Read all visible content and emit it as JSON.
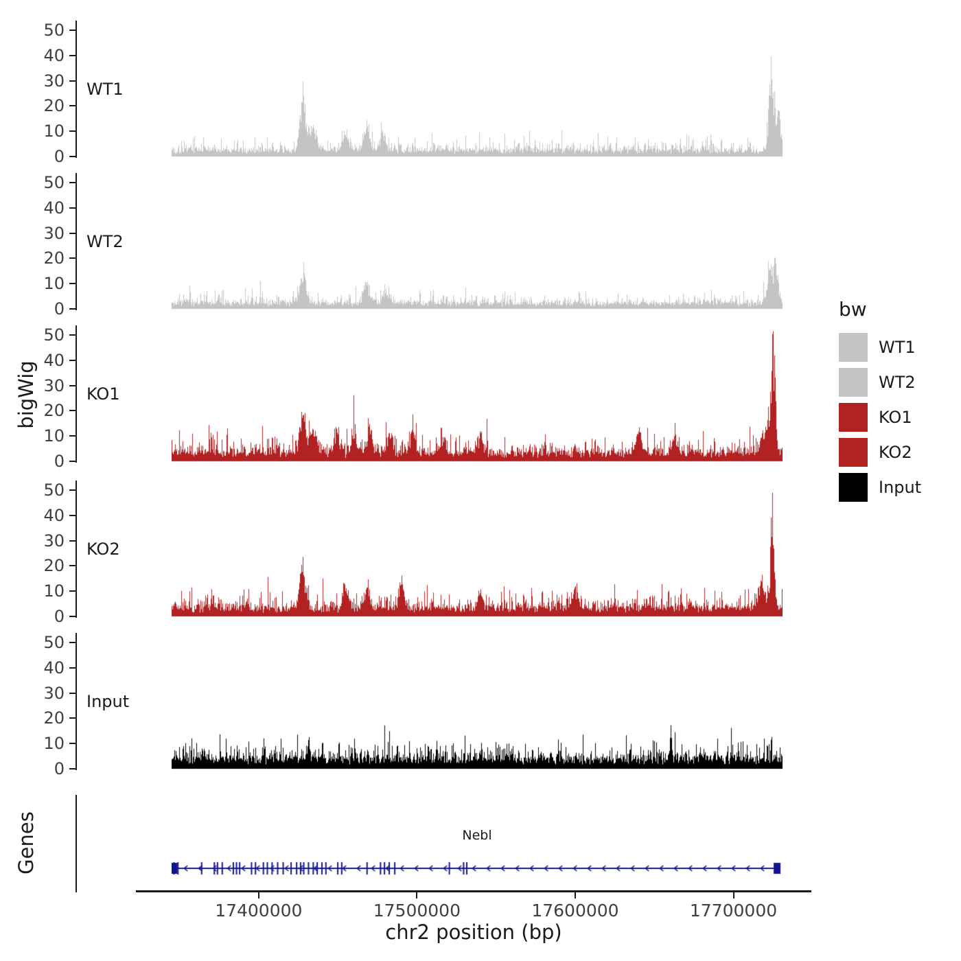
{
  "axes": {
    "y_title": "bigWig",
    "genes_title": "Genes",
    "x_title": "chr2 position (bp)",
    "y_ticks": [
      0,
      10,
      20,
      30,
      40,
      50
    ],
    "x_ticks": [
      {
        "value": 17400000,
        "label": "17400000"
      },
      {
        "value": 17500000,
        "label": "17500000"
      },
      {
        "value": 17600000,
        "label": "17600000"
      },
      {
        "value": 17700000,
        "label": "17700000"
      }
    ]
  },
  "legend": {
    "title": "bw",
    "entries": [
      {
        "label": "WT1",
        "color": "#c4c4c4"
      },
      {
        "label": "WT2",
        "color": "#c4c4c4"
      },
      {
        "label": "KO1",
        "color": "#b22222"
      },
      {
        "label": "KO2",
        "color": "#b22222"
      },
      {
        "label": "Input",
        "color": "#000000"
      }
    ]
  },
  "chart_data": {
    "type": "area",
    "title": "",
    "xlabel": "chr2 position (bp)",
    "ylabel": "bigWig",
    "x_range": [
      17345000,
      17731000
    ],
    "ylim": [
      0,
      52
    ],
    "y_ticks": [
      0,
      10,
      20,
      30,
      40,
      50
    ],
    "x_tick_values": [
      17400000,
      17500000,
      17600000,
      17700000
    ],
    "tracks": [
      {
        "name": "WT1",
        "color": "#c4c4c4",
        "seed": 101,
        "base": 3.2,
        "min": 1.0,
        "peaks": [
          [
            17427500,
            22,
            1600
          ],
          [
            17433000,
            9,
            3000
          ],
          [
            17455000,
            6,
            2000
          ],
          [
            17468000,
            10,
            2000
          ],
          [
            17478000,
            7,
            1800
          ],
          [
            17723500,
            28,
            1400
          ],
          [
            17727000,
            16,
            2600
          ]
        ]
      },
      {
        "name": "WT2",
        "color": "#c4c4c4",
        "seed": 202,
        "base": 3.0,
        "min": 0.9,
        "peaks": [
          [
            17428000,
            15,
            1800
          ],
          [
            17468000,
            8,
            2200
          ],
          [
            17480000,
            6,
            1800
          ],
          [
            17722500,
            13,
            1800
          ],
          [
            17726500,
            17,
            1500
          ]
        ]
      },
      {
        "name": "KO1",
        "color": "#b22222",
        "seed": 303,
        "base": 4.4,
        "min": 1.2,
        "peaks": [
          [
            17427500,
            20,
            1600
          ],
          [
            17434000,
            10,
            2500
          ],
          [
            17449000,
            10,
            1400
          ],
          [
            17460000,
            11,
            1400
          ],
          [
            17470000,
            10,
            1400
          ],
          [
            17483000,
            9,
            1400
          ],
          [
            17497000,
            11,
            1400
          ],
          [
            17516000,
            8,
            1500
          ],
          [
            17540000,
            7,
            1800
          ],
          [
            17640000,
            9,
            1600
          ],
          [
            17663000,
            8,
            1400
          ],
          [
            17721000,
            13,
            3000
          ],
          [
            17725000,
            40,
            1300
          ]
        ]
      },
      {
        "name": "KO2",
        "color": "#b22222",
        "seed": 404,
        "base": 4.4,
        "min": 1.2,
        "peaks": [
          [
            17427500,
            19,
            1600
          ],
          [
            17455000,
            8,
            1500
          ],
          [
            17468000,
            9,
            1500
          ],
          [
            17490000,
            10,
            1500
          ],
          [
            17540000,
            7,
            1800
          ],
          [
            17600000,
            6,
            2000
          ],
          [
            17718000,
            12,
            2600
          ],
          [
            17724500,
            44,
            1100
          ]
        ]
      },
      {
        "name": "Input",
        "color": "#000000",
        "seed": 505,
        "base": 5.0,
        "min": 1.8,
        "peaks": [
          [
            17431500,
            12,
            500
          ],
          [
            17660000,
            7,
            700
          ]
        ]
      }
    ],
    "gene_track": {
      "name": "Nebl",
      "color": "#14148c",
      "strand": "-",
      "start": 17346000,
      "end": 17728000,
      "exons": [
        17346500,
        17349000,
        17364000,
        17372000,
        17374000,
        17377000,
        17384000,
        17386000,
        17388000,
        17395500,
        17398000,
        17403000,
        17405500,
        17408500,
        17412000,
        17415500,
        17420500,
        17424000,
        17426500,
        17428500,
        17431500,
        17434500,
        17437000,
        17440000,
        17442500,
        17450000,
        17452500,
        17468500,
        17477000,
        17479500,
        17482500,
        17486000,
        17520500,
        17529500,
        17531500
      ]
    }
  }
}
